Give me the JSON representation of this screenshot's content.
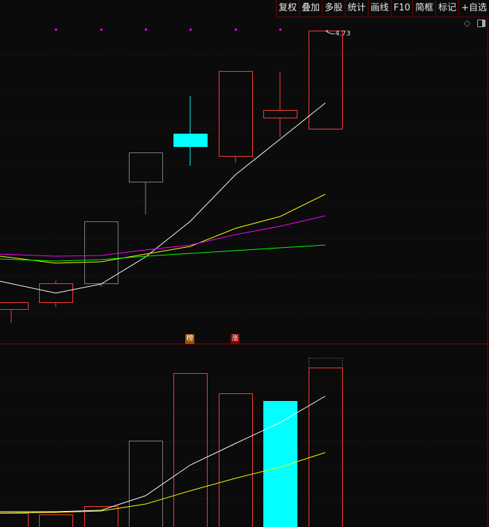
{
  "toolbar": {
    "items": [
      "复权",
      "叠加",
      "多股",
      "统计",
      "画线",
      "F10",
      "简框",
      "标记",
      "+自选"
    ]
  },
  "price_chart": {
    "high_label": "4.73",
    "up_color": "#ff3c3c",
    "down_color": "#00ffff",
    "flat_color": "#808080",
    "ma_colors": [
      "#ffffff",
      "#ffff00",
      "#ff00ff",
      "#00ff00"
    ]
  },
  "badges": [
    {
      "text": "榜",
      "color": "#a05000"
    },
    {
      "text": "涨",
      "color": "#8b0000"
    }
  ],
  "icons": {
    "diamond": "◇",
    "panel_toggle": "panel-toggle-icon"
  }
}
